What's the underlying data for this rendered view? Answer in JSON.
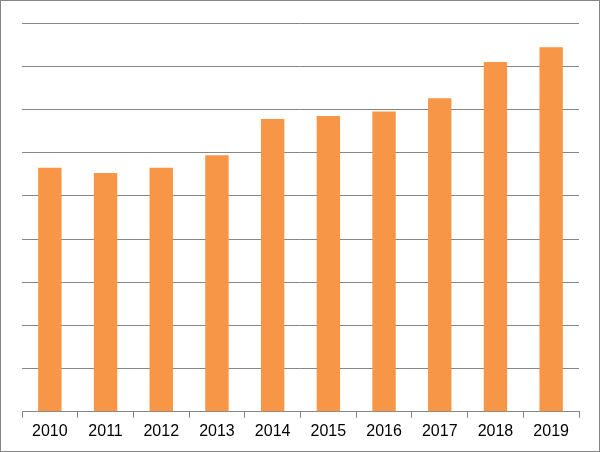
{
  "chart_data": {
    "type": "bar",
    "categories": [
      "2010",
      "2011",
      "2012",
      "2013",
      "2014",
      "2015",
      "2016",
      "2017",
      "2018",
      "2019"
    ],
    "values": [
      5.65,
      5.53,
      5.65,
      5.94,
      6.78,
      6.85,
      6.95,
      7.26,
      8.1,
      8.44
    ],
    "color": "#f79646",
    "ylim": [
      0,
      9
    ],
    "yticks": [
      0,
      1,
      2,
      3,
      4,
      5,
      6,
      7,
      8,
      9
    ],
    "grid": true,
    "tick_labels": "x"
  }
}
